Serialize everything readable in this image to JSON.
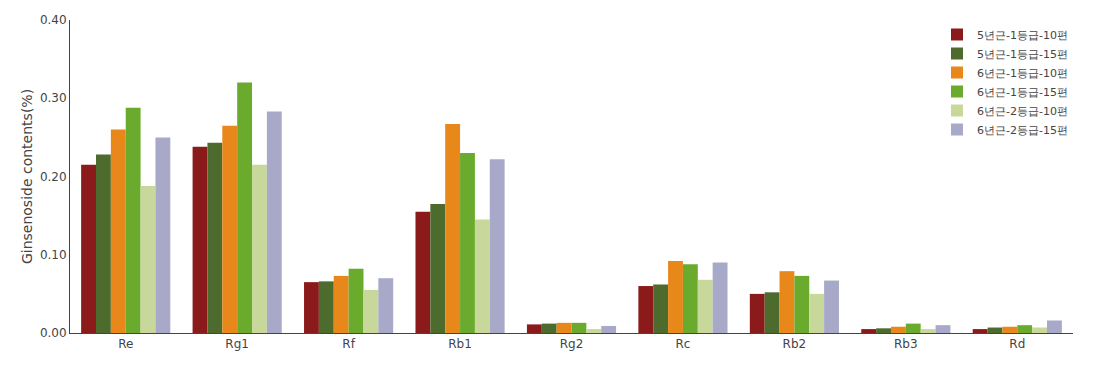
{
  "chart_data": {
    "type": "bar",
    "categories": [
      "Re",
      "Rg1",
      "Rf",
      "Rb1",
      "Rg2",
      "Rc",
      "Rb2",
      "Rb3",
      "Rd"
    ],
    "series": [
      {
        "name": "5년근-1등급-10편",
        "color": "#8B1A1A",
        "values": [
          0.215,
          0.238,
          0.065,
          0.155,
          0.011,
          0.06,
          0.05,
          0.005,
          0.005
        ]
      },
      {
        "name": "5년근-1등급-15편",
        "color": "#4E6B2E",
        "values": [
          0.228,
          0.243,
          0.066,
          0.165,
          0.012,
          0.062,
          0.052,
          0.006,
          0.007
        ]
      },
      {
        "name": "6년근-1등급-10편",
        "color": "#E8871A",
        "values": [
          0.26,
          0.265,
          0.073,
          0.267,
          0.013,
          0.092,
          0.079,
          0.008,
          0.008
        ]
      },
      {
        "name": "6년근-1등급-15편",
        "color": "#6AAB2E",
        "values": [
          0.288,
          0.32,
          0.082,
          0.23,
          0.013,
          0.088,
          0.073,
          0.012,
          0.01
        ]
      },
      {
        "name": "6년근-2등급-10편",
        "color": "#C8D89A",
        "values": [
          0.188,
          0.215,
          0.055,
          0.145,
          0.005,
          0.068,
          0.05,
          0.005,
          0.007
        ]
      },
      {
        "name": "6년근-2등급-15편",
        "color": "#A8A8C8",
        "values": [
          0.25,
          0.283,
          0.07,
          0.222,
          0.009,
          0.09,
          0.067,
          0.01,
          0.016
        ]
      }
    ],
    "ylabel": "Ginsenoside contents(%)",
    "ylim": [
      0,
      0.4
    ],
    "yticks": [
      {
        "value": 0.0,
        "label": "0.00"
      },
      {
        "value": 0.1,
        "label": "0.10"
      },
      {
        "value": 0.2,
        "label": "0.20"
      },
      {
        "value": 0.3,
        "label": "0.30"
      },
      {
        "value": 0.4,
        "label": "0.40"
      }
    ],
    "grid": false,
    "legend": "upper right"
  }
}
